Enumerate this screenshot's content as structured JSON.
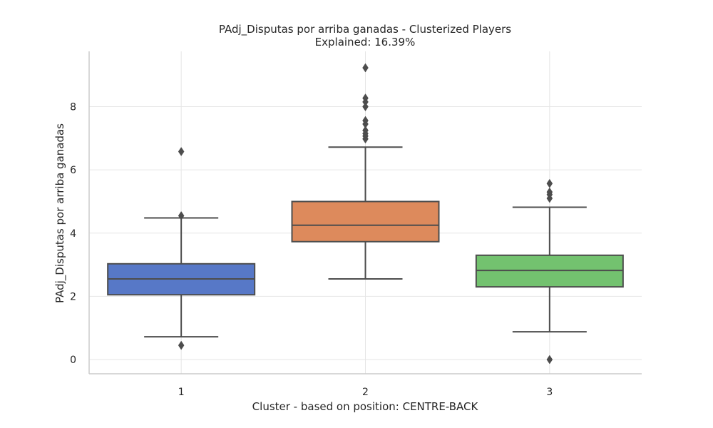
{
  "chart_data": {
    "type": "box",
    "title": "PAdj_Disputas por arriba ganadas - Clusterized Players",
    "subtitle": "Explained: 16.39%",
    "xlabel": "Cluster - based on position: CENTRE-BACK",
    "ylabel": "PAdj_Disputas por arriba ganadas",
    "ylim": [
      -0.45,
      9.75
    ],
    "yticks": [
      0,
      2,
      4,
      6,
      8
    ],
    "grid": true,
    "categories": [
      "1",
      "2",
      "3"
    ],
    "boxes": [
      {
        "category": "1",
        "color": "#5778c7",
        "whisker_low": 0.72,
        "q1": 2.05,
        "median": 2.55,
        "q3": 3.03,
        "whisker_high": 4.48,
        "outliers": [
          0.45,
          4.55,
          6.58
        ]
      },
      {
        "category": "2",
        "color": "#dd8a5c",
        "whisker_low": 2.55,
        "q1": 3.73,
        "median": 4.25,
        "q3": 5.0,
        "whisker_high": 6.72,
        "outliers": [
          6.98,
          7.07,
          7.15,
          7.25,
          7.45,
          7.56,
          8.0,
          8.15,
          8.27,
          9.23
        ]
      },
      {
        "category": "3",
        "color": "#73c26f",
        "whisker_low": 0.88,
        "q1": 2.3,
        "median": 2.82,
        "q3": 3.3,
        "whisker_high": 4.82,
        "outliers": [
          0.0,
          5.1,
          5.22,
          5.3,
          5.57
        ]
      }
    ]
  }
}
